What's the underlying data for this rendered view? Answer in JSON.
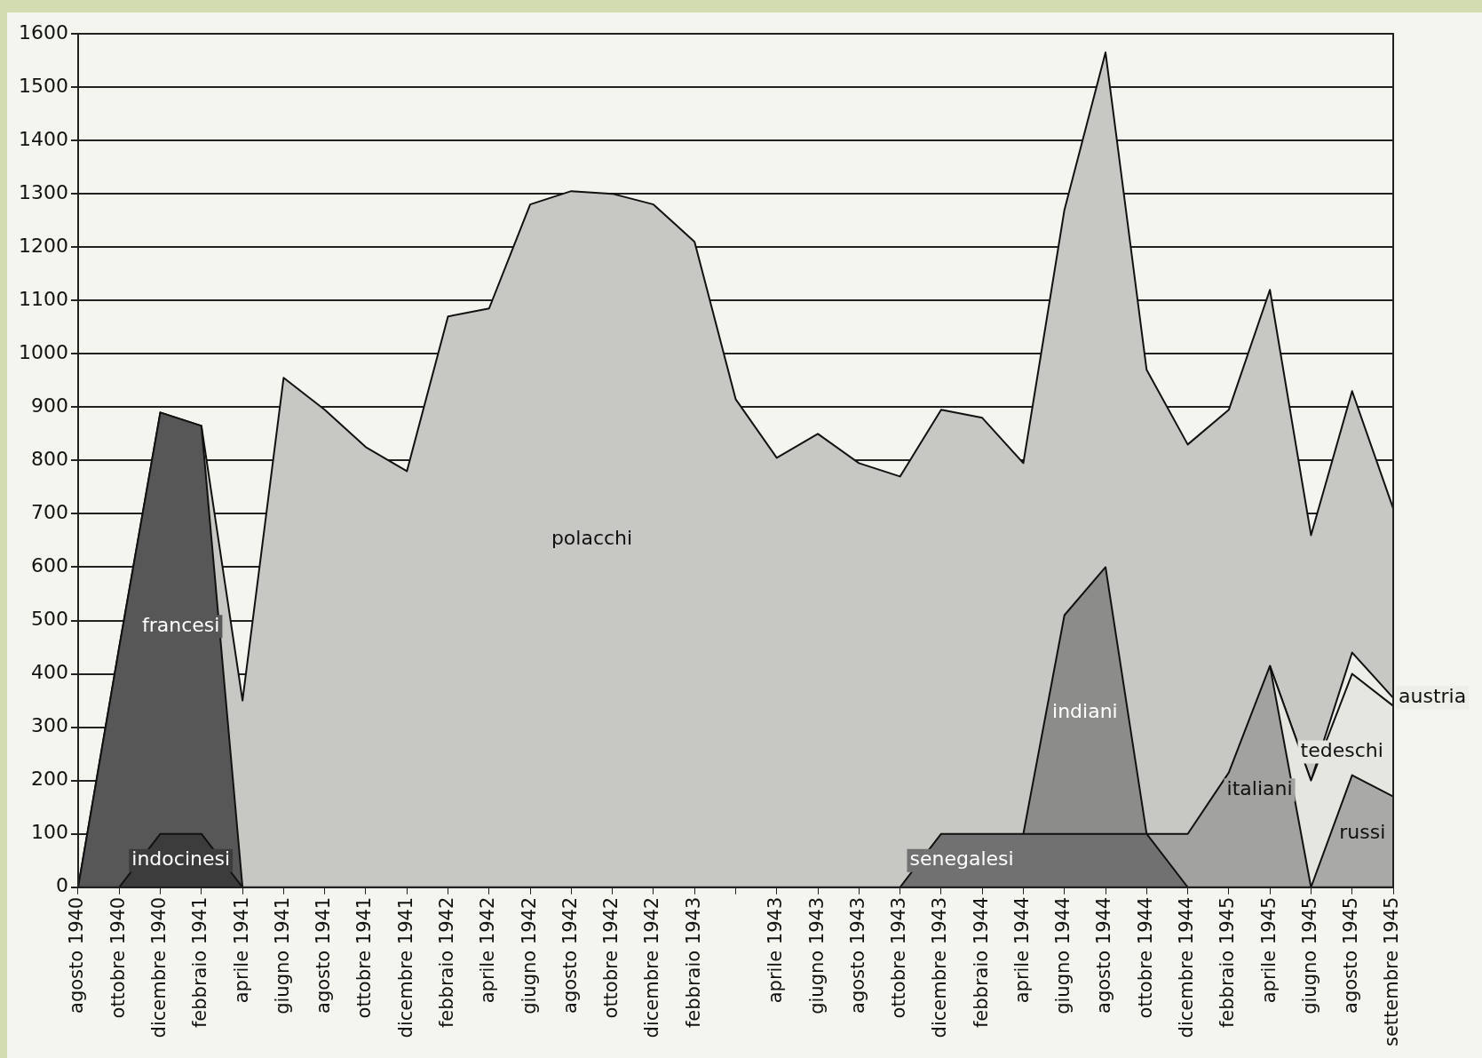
{
  "chart_data": {
    "type": "area",
    "grid": "y",
    "categories": [
      "agosto 1940",
      "ottobre 1940",
      "dicembre 1940",
      "febbraio 1941",
      "aprile 1941",
      "giugno 1941",
      "agosto 1941",
      "ottobre 1941",
      "dicembre 1941",
      "febbraio 1942",
      "aprile 1942",
      "giugno 1942",
      "agosto 1942",
      "ottobre 1942",
      "dicembre 1942",
      "febbraio 1943",
      null,
      "aprile 1943",
      "giugno 1943",
      "agosto 1943",
      "ottobre 1943",
      "dicembre 1943",
      "febbraio 1944",
      "aprile 1944",
      "giugno 1944",
      "agosto 1944",
      "ottobre 1944",
      "dicembre 1944",
      "febbraio 1945",
      "aprile 1945",
      "giugno 1945",
      "agosto 1945",
      "settembre 1945"
    ],
    "ylim": [
      0,
      1600
    ],
    "yticks": [
      0,
      100,
      200,
      300,
      400,
      500,
      600,
      700,
      800,
      900,
      1000,
      1100,
      1200,
      1300,
      1400,
      1500,
      1600
    ],
    "series": [
      {
        "name": "indocinesi",
        "color": "#3c3c3c",
        "values": [
          null,
          0,
          100,
          100,
          0,
          null,
          null,
          null,
          null,
          null,
          null,
          null,
          null,
          null,
          null,
          null,
          null,
          null,
          null,
          null,
          null,
          null,
          null,
          null,
          null,
          null,
          null,
          null,
          null,
          null,
          null,
          null,
          null
        ]
      },
      {
        "name": "francesi",
        "color": "#575757",
        "values": [
          0,
          450,
          890,
          865,
          0,
          null,
          null,
          null,
          null,
          null,
          null,
          null,
          null,
          null,
          null,
          null,
          null,
          null,
          null,
          null,
          null,
          null,
          null,
          null,
          null,
          null,
          null,
          null,
          null,
          null,
          null,
          null,
          null
        ]
      },
      {
        "name": "senegalesi",
        "color": "#717171",
        "values": [
          null,
          null,
          null,
          null,
          null,
          null,
          null,
          null,
          null,
          null,
          null,
          null,
          null,
          null,
          null,
          null,
          null,
          null,
          null,
          null,
          0,
          100,
          100,
          100,
          100,
          100,
          100,
          0,
          null,
          null,
          null,
          null,
          null
        ]
      },
      {
        "name": "indiani",
        "color": "#8c8c8a",
        "values": [
          null,
          null,
          null,
          null,
          null,
          null,
          null,
          null,
          null,
          null,
          null,
          null,
          null,
          null,
          null,
          null,
          null,
          null,
          null,
          null,
          null,
          null,
          null,
          100,
          510,
          600,
          100,
          null,
          null,
          null,
          null,
          null,
          null
        ]
      },
      {
        "name": "russi",
        "color": "#a9a9a7",
        "values": [
          null,
          null,
          null,
          null,
          null,
          null,
          null,
          null,
          null,
          null,
          null,
          null,
          null,
          null,
          null,
          null,
          null,
          null,
          null,
          null,
          null,
          null,
          null,
          null,
          null,
          null,
          null,
          null,
          null,
          null,
          0,
          210,
          170
        ]
      },
      {
        "name": "italiani",
        "color": "#a2a2a0",
        "values": [
          null,
          null,
          null,
          null,
          null,
          null,
          null,
          null,
          null,
          null,
          null,
          null,
          null,
          null,
          null,
          null,
          null,
          null,
          null,
          null,
          null,
          null,
          null,
          null,
          null,
          null,
          100,
          100,
          215,
          415,
          0,
          null,
          null
        ]
      },
      {
        "name": "tedeschi",
        "color": "#e6e6e1",
        "values": [
          null,
          null,
          null,
          null,
          null,
          null,
          null,
          null,
          null,
          null,
          null,
          null,
          null,
          null,
          null,
          null,
          null,
          null,
          null,
          null,
          null,
          null,
          null,
          null,
          null,
          null,
          null,
          null,
          null,
          415,
          200,
          400,
          340
        ]
      },
      {
        "name": "austria",
        "color": "#eeeee8",
        "values": [
          null,
          null,
          null,
          null,
          null,
          null,
          null,
          null,
          null,
          null,
          null,
          null,
          null,
          null,
          null,
          null,
          null,
          null,
          null,
          null,
          null,
          null,
          null,
          null,
          null,
          null,
          null,
          null,
          null,
          415,
          200,
          440,
          355
        ]
      },
      {
        "name": "polacchi",
        "color": "#c7c7c3",
        "values": [
          0,
          450,
          890,
          865,
          350,
          955,
          895,
          825,
          780,
          1070,
          1085,
          1280,
          1305,
          1300,
          1280,
          1210,
          915,
          805,
          850,
          795,
          770,
          895,
          880,
          795,
          1270,
          1565,
          970,
          830,
          895,
          1120,
          660,
          930,
          710
        ]
      }
    ]
  }
}
